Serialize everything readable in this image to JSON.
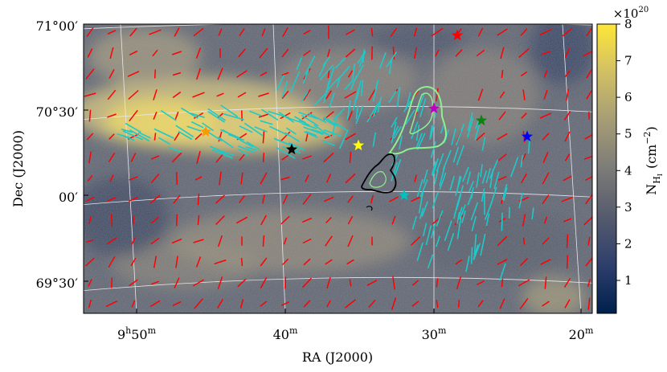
{
  "chart_data": {
    "type": "heatmap",
    "title": "",
    "xlabel": "RA (J2000)",
    "ylabel": "Dec (J2000)",
    "x_ticks": [
      {
        "text_main": "9",
        "sup1": "h",
        "text_mid": "50",
        "sup2": "m"
      },
      {
        "text_main": "40",
        "sup1": "",
        "text_mid": "",
        "sup2": "m"
      },
      {
        "text_main": "30",
        "sup1": "",
        "text_mid": "",
        "sup2": "m"
      },
      {
        "text_main": "20",
        "sup1": "",
        "text_mid": "",
        "sup2": "m"
      }
    ],
    "y_ticks": [
      "71°00′",
      "70°30′",
      "00′",
      "69°30′"
    ],
    "colorbar": {
      "label_main": "N",
      "label_sub": "H",
      "label_subsub": "I",
      "label_units": "(cm",
      "label_exp": "−2",
      "label_close": ")",
      "multiplier_base": "×10",
      "multiplier_exp": "20",
      "ticks": [
        "1",
        "2",
        "3",
        "4",
        "5",
        "6",
        "7",
        "8"
      ],
      "range": [
        0.1,
        8
      ],
      "colors": [
        "#00204c",
        "#2f3f6c",
        "#575c6e",
        "#7c7b78",
        "#a69d75",
        "#d3c164",
        "#fde737"
      ]
    },
    "stars": [
      {
        "name": "red",
        "color": "#ff0000"
      },
      {
        "name": "magenta",
        "color": "#c000c0"
      },
      {
        "name": "green",
        "color": "#108010"
      },
      {
        "name": "blue",
        "color": "#0000ff"
      },
      {
        "name": "yellow",
        "color": "#ffff00"
      },
      {
        "name": "black",
        "color": "#000000"
      },
      {
        "name": "orange",
        "color": "#ff9900"
      },
      {
        "name": "cyan",
        "color": "#00c0c0"
      }
    ],
    "vector_colors": {
      "red": "#ff0000",
      "cyan": "#20c8c8"
    },
    "contour_colors": {
      "light_green": "#90ee90",
      "black": "#000000"
    },
    "grid": true
  }
}
